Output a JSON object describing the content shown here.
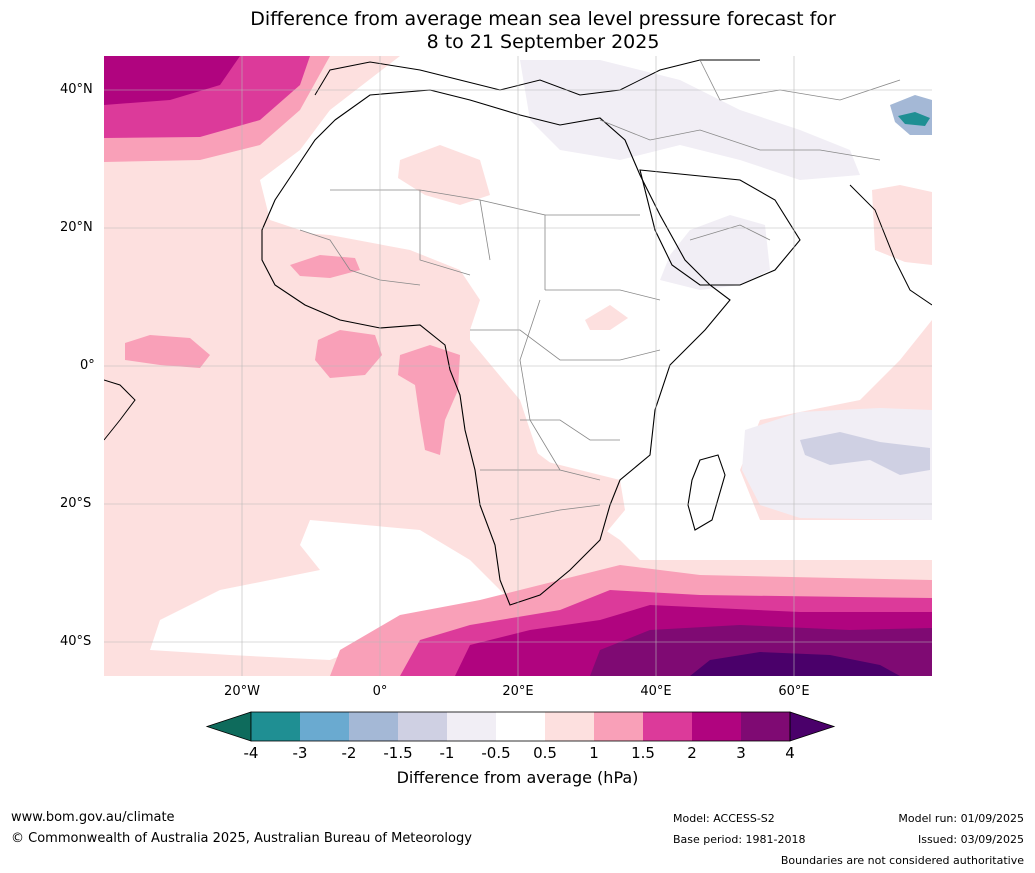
{
  "title": {
    "line1": "Difference from average mean sea level pressure forecast for",
    "line2": "8 to 21 September 2025"
  },
  "axes": {
    "lat_labels": [
      "40°N",
      "20°N",
      "0°",
      "20°S",
      "40°S"
    ],
    "lon_labels": [
      "20°W",
      "0°",
      "20°E",
      "40°E",
      "60°E"
    ]
  },
  "colorbar": {
    "ticks": [
      "-4",
      "-3",
      "-2",
      "-1.5",
      "-1",
      "-0.5",
      "0.5",
      "1",
      "1.5",
      "2",
      "3",
      "4"
    ],
    "colors": [
      "#1f8f93",
      "#6aaad0",
      "#a4b8d6",
      "#cfd0e3",
      "#f1eef5",
      "#ffffff",
      "#fde0df",
      "#f9a0b8",
      "#dc3a9a",
      "#b0047f",
      "#7f0a73"
    ],
    "under_color": "#0e6b5c",
    "over_color": "#4a006a",
    "label": "Difference from average (hPa)"
  },
  "footer": {
    "website": "www.bom.gov.au/climate",
    "copyright": "© Commonwealth of Australia 2025, Australian Bureau of Meteorology",
    "model": "Model: ACCESS-S2",
    "base_period": "Base period: 1981-2018",
    "model_run": "Model run: 01/09/2025",
    "issued": "Issued: 03/09/2025",
    "disclaimer": "Boundaries are not considered authoritative"
  }
}
